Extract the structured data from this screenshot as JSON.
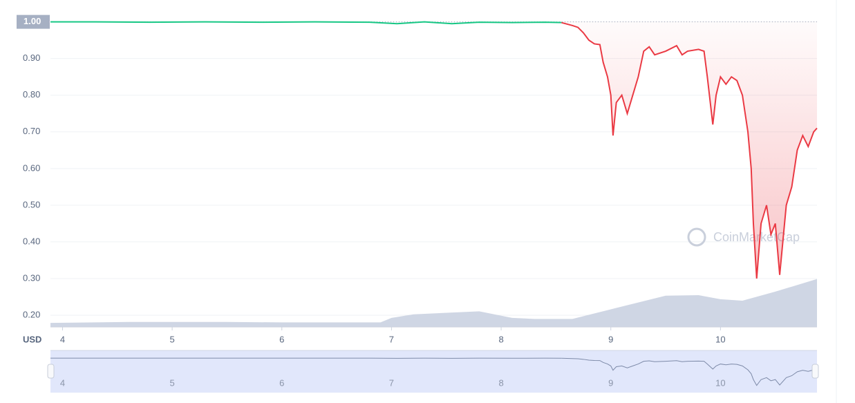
{
  "chart_data": {
    "type": "line",
    "y_unit": "USD",
    "watermark": "CoinMarketCap",
    "xlim": [
      3.89,
      10.88
    ],
    "xticks": [
      4,
      5,
      6,
      7,
      8,
      9,
      10
    ],
    "ylim": [
      0.168,
      1.02
    ],
    "yticks": [
      {
        "value": 0.2,
        "label": "0.20"
      },
      {
        "value": 0.3,
        "label": "0.30"
      },
      {
        "value": 0.4,
        "label": "0.40"
      },
      {
        "value": 0.5,
        "label": "0.50"
      },
      {
        "value": 0.6,
        "label": "0.60"
      },
      {
        "value": 0.7,
        "label": "0.70"
      },
      {
        "value": 0.8,
        "label": "0.80"
      },
      {
        "value": 0.9,
        "label": "0.90"
      },
      {
        "value": 1,
        "label": "1.00"
      }
    ],
    "baseline": 1,
    "grid": true,
    "series": [
      {
        "color": "#16c784",
        "x": [
          3.89,
          4.3,
          4.8,
          5.3,
          5.8,
          6.3,
          6.8,
          7.05,
          7.3,
          7.55,
          7.8,
          8.1,
          8.4,
          8.55
        ],
        "values": [
          1.0,
          1.0,
          0.999,
          1.0,
          0.999,
          1.0,
          0.999,
          0.995,
          1.0,
          0.995,
          0.999,
          0.998,
          0.999,
          0.998
        ]
      },
      {
        "color": "#ea3943",
        "x": [
          8.55,
          8.65,
          8.7,
          8.75,
          8.8,
          8.85,
          8.9,
          8.93,
          8.97,
          9.0,
          9.02,
          9.05,
          9.1,
          9.15,
          9.2,
          9.25,
          9.3,
          9.35,
          9.4,
          9.5,
          9.6,
          9.65,
          9.7,
          9.8,
          9.85,
          9.88,
          9.93,
          9.96,
          10.0,
          10.05,
          10.1,
          10.15,
          10.2,
          10.25,
          10.28,
          10.3,
          10.33,
          10.37,
          10.42,
          10.46,
          10.5,
          10.54,
          10.6,
          10.65,
          10.7,
          10.75,
          10.8,
          10.85,
          10.88
        ],
        "values": [
          0.998,
          0.99,
          0.985,
          0.97,
          0.95,
          0.94,
          0.938,
          0.89,
          0.85,
          0.8,
          0.69,
          0.78,
          0.8,
          0.75,
          0.8,
          0.85,
          0.92,
          0.932,
          0.91,
          0.92,
          0.935,
          0.91,
          0.92,
          0.925,
          0.92,
          0.85,
          0.72,
          0.8,
          0.85,
          0.83,
          0.85,
          0.84,
          0.8,
          0.7,
          0.6,
          0.45,
          0.3,
          0.45,
          0.5,
          0.42,
          0.45,
          0.31,
          0.5,
          0.55,
          0.65,
          0.69,
          0.66,
          0.7,
          0.71
        ]
      }
    ],
    "volume": {
      "color": "#cfd6e4",
      "y2lim": [
        0,
        100
      ],
      "x": [
        3.89,
        4.6,
        5.5,
        6.0,
        6.9,
        7.0,
        7.2,
        7.8,
        8.1,
        8.3,
        8.65,
        9.0,
        9.5,
        9.8,
        10.0,
        10.2,
        10.5,
        10.88
      ],
      "values": [
        8,
        10,
        10,
        9,
        9,
        18,
        25,
        31,
        18,
        16,
        16,
        35,
        62,
        63,
        55,
        52,
        70,
        95
      ]
    }
  }
}
